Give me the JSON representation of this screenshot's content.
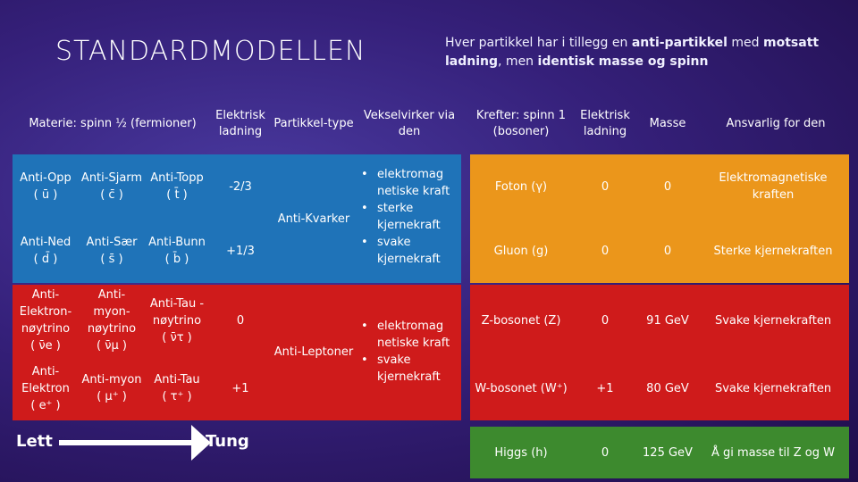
{
  "title": "STANDARDMODELLEN",
  "note": {
    "part1": "Hver partikkel har i tillegg en ",
    "bold1": "anti-partikkel",
    "part2": " med ",
    "bold2": "motsatt ladning",
    "part3": ", men ",
    "bold3": "identisk masse og spinn"
  },
  "matter_table": {
    "header_matter": "Materie: spinn ½ (fermioner)",
    "header_charge": "Elektrisk ladning",
    "header_type": "Partikkel-type",
    "header_interacts": "Vekselvirker via den",
    "quarks_up": [
      {
        "name": "Anti-Opp",
        "sym": "( ū )"
      },
      {
        "name": "Anti-Sjarm",
        "sym": "( c̄ )"
      },
      {
        "name": "Anti-Topp",
        "sym": "( t̄ )"
      }
    ],
    "quarks_up_charge": "-2/3",
    "quarks_down": [
      {
        "name": "Anti-Ned",
        "sym": "( d̄ )"
      },
      {
        "name": "Anti-Sær",
        "sym": "( s̄ )"
      },
      {
        "name": "Anti-Bunn",
        "sym": "( b̄ )"
      }
    ],
    "quarks_down_charge": "+1/3",
    "quark_type": "Anti-Kvarker",
    "quark_interactions": [
      "elektromag netiske kraft",
      "sterke kjernekraft",
      "svake kjernekraft"
    ],
    "neutrinos": [
      {
        "name": "Anti-Elektron-nøytrino",
        "sym": "( ν̄e )"
      },
      {
        "name": "Anti-myon-nøytrino",
        "sym": "( ν̄μ )"
      },
      {
        "name": "Anti-Tau -nøytrino",
        "sym": "( ν̄τ )"
      }
    ],
    "neutrino_charge": "0",
    "leptons": [
      {
        "name": "Anti-Elektron",
        "sym": "( e⁺ )"
      },
      {
        "name": "Anti-myon",
        "sym": "( μ⁺ )"
      },
      {
        "name": "Anti-Tau",
        "sym": "( τ⁺ )"
      }
    ],
    "lepton_charge": "+1",
    "lepton_type": "Anti-Leptoner",
    "lepton_interactions": [
      "elektromag netiske kraft",
      "svake kjernekraft"
    ]
  },
  "force_table": {
    "header_forces": "Krefter: spinn 1 (bosoner)",
    "header_charge": "Elektrisk ladning",
    "header_mass": "Masse",
    "header_resp": "Ansvarlig for den",
    "rows": [
      {
        "name": "Foton (γ)",
        "charge": "0",
        "mass": "0",
        "resp": "Elektromagnetiske kraften"
      },
      {
        "name": "Gluon (g)",
        "charge": "0",
        "mass": "0",
        "resp": "Sterke kjernekraften"
      },
      {
        "name": "Z-bosonet (Z)",
        "charge": "0",
        "mass": "91 GeV",
        "resp": "Svake kjernekraften"
      },
      {
        "name": "W-bosonet (W⁺)",
        "charge": "+1",
        "mass": "80 GeV",
        "resp": "Svake kjernekraften"
      },
      {
        "name": "Higgs (h)",
        "charge": "0",
        "mass": "125 GeV",
        "resp": "Å gi masse til Z og W"
      }
    ]
  },
  "legend": {
    "light": "Lett",
    "heavy": "Tung"
  },
  "colors": {
    "quark": "#1f73b8",
    "lepton": "#cf1b1b",
    "force": "#eb961b",
    "higgs": "#3d8a2e"
  }
}
